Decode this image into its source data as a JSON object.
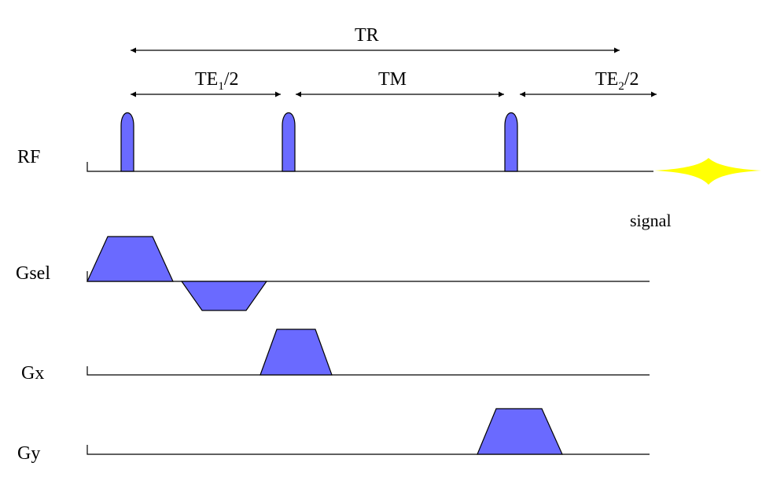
{
  "colors": {
    "pulse_fill": "#6a6aff",
    "outline": "#000000",
    "signal": "#ffff00"
  },
  "intervals": {
    "tr": "TR",
    "te1_base": "TE",
    "te1_sub": "1",
    "te1_suffix": "/2",
    "tm": "TM",
    "te2_base": "TE",
    "te2_sub": "2",
    "te2_suffix": "/2"
  },
  "channels": {
    "rf": "RF",
    "gsel": "Gsel",
    "gx": "Gx",
    "gy": "Gy"
  },
  "signal_label": "signal"
}
